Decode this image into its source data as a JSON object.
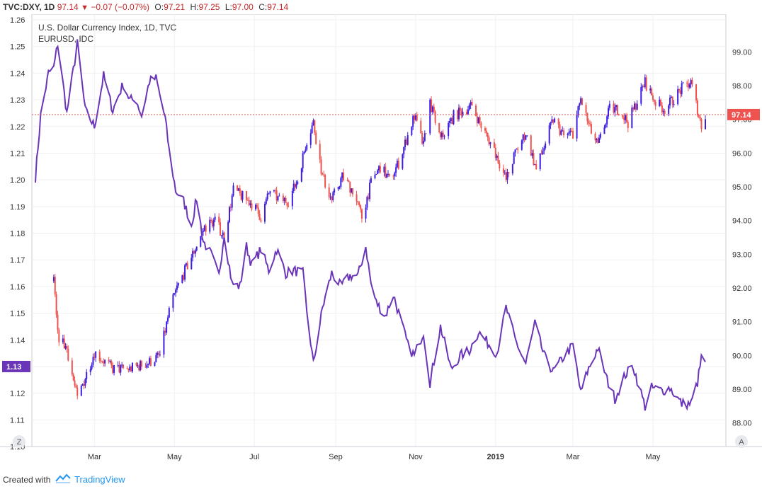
{
  "header": {
    "symbol": "TVC:DXY, 1D",
    "last": "97.14",
    "change": "−0.07 (−0.07%)",
    "open_label": "O:",
    "open": "97.21",
    "high_label": "H:",
    "high": "97.25",
    "low_label": "L:",
    "low": "97.00",
    "close_label": "C:",
    "close": "97.14"
  },
  "legend": {
    "series1": "U.S. Dollar Currency Index, 1D, TVC",
    "series2": "EURUSD, IDC"
  },
  "badges": {
    "right_price": "97.14",
    "left_price": "1.13",
    "z_button": "Z",
    "a_button": "A"
  },
  "footer": {
    "created_with": "Created with",
    "brand": "TradingView"
  },
  "colors": {
    "up": "#3b1ee0",
    "down": "#ef5350",
    "eurusd_line": "#6a35b8",
    "price_line": "#ef5350",
    "grid": "#eef0f3",
    "axis_text": "#333333"
  },
  "chart_data": {
    "type": "line",
    "x_ticks": [
      "Mar",
      "May",
      "Jul",
      "Sep",
      "Nov",
      "2019",
      "Mar",
      "May"
    ],
    "y_left": {
      "ticks": [
        "1.26",
        "1.25",
        "1.24",
        "1.23",
        "1.22",
        "1.21",
        "1.20",
        "1.19",
        "1.18",
        "1.17",
        "1.16",
        "1.15",
        "1.14",
        "1.13",
        "1.12",
        "1.11",
        "1.10"
      ],
      "range": [
        1.1,
        1.26
      ]
    },
    "y_right": {
      "ticks": [
        "99.00",
        "98.00",
        "97.00",
        "96.00",
        "95.00",
        "94.00",
        "93.00",
        "92.00",
        "91.00",
        "90.00",
        "89.00",
        "88.00"
      ],
      "range": [
        87.3,
        99.95
      ]
    },
    "series": [
      {
        "name": "U.S. Dollar Currency Index, 1D, TVC",
        "axis": "right",
        "kind": "candlestick",
        "anchors": [
          [
            "2018-01-29",
            92.2
          ],
          [
            "2018-02-01",
            90.6
          ],
          [
            "2018-02-08",
            90.2
          ],
          [
            "2018-02-16",
            88.7
          ],
          [
            "2018-03-01",
            90.1
          ],
          [
            "2018-03-15",
            89.6
          ],
          [
            "2018-03-28",
            89.6
          ],
          [
            "2018-04-12",
            89.8
          ],
          [
            "2018-04-20",
            90.0
          ],
          [
            "2018-04-27",
            91.3
          ],
          [
            "2018-05-03",
            92.0
          ],
          [
            "2018-05-15",
            93.0
          ],
          [
            "2018-05-24",
            93.8
          ],
          [
            "2018-06-01",
            94.0
          ],
          [
            "2018-06-08",
            93.5
          ],
          [
            "2018-06-15",
            94.9
          ],
          [
            "2018-06-29",
            94.5
          ],
          [
            "2018-07-06",
            94.1
          ],
          [
            "2018-07-13",
            94.9
          ],
          [
            "2018-07-20",
            94.6
          ],
          [
            "2018-07-27",
            94.6
          ],
          [
            "2018-08-03",
            95.2
          ],
          [
            "2018-08-10",
            96.4
          ],
          [
            "2018-08-15",
            96.9
          ],
          [
            "2018-08-22",
            95.3
          ],
          [
            "2018-08-29",
            94.6
          ],
          [
            "2018-09-06",
            95.3
          ],
          [
            "2018-09-14",
            94.9
          ],
          [
            "2018-09-21",
            94.1
          ],
          [
            "2018-09-28",
            95.1
          ],
          [
            "2018-10-05",
            95.6
          ],
          [
            "2018-10-12",
            95.2
          ],
          [
            "2018-10-19",
            95.7
          ],
          [
            "2018-10-31",
            97.1
          ],
          [
            "2018-11-07",
            96.2
          ],
          [
            "2018-11-12",
            97.5
          ],
          [
            "2018-11-20",
            96.4
          ],
          [
            "2018-11-30",
            97.1
          ],
          [
            "2018-12-14",
            97.4
          ],
          [
            "2018-12-21",
            96.8
          ],
          [
            "2018-12-31",
            96.1
          ],
          [
            "2019-01-09",
            95.2
          ],
          [
            "2019-01-16",
            96.0
          ],
          [
            "2019-01-24",
            96.6
          ],
          [
            "2019-02-01",
            95.5
          ],
          [
            "2019-02-14",
            97.0
          ],
          [
            "2019-02-22",
            96.5
          ],
          [
            "2019-03-01",
            96.6
          ],
          [
            "2019-03-07",
            97.6
          ],
          [
            "2019-03-14",
            96.7
          ],
          [
            "2019-03-20",
            96.2
          ],
          [
            "2019-03-29",
            97.3
          ],
          [
            "2019-04-05",
            97.3
          ],
          [
            "2019-04-12",
            96.9
          ],
          [
            "2019-04-25",
            98.1
          ],
          [
            "2019-05-03",
            97.5
          ],
          [
            "2019-05-10",
            97.3
          ],
          [
            "2019-05-23",
            97.9
          ],
          [
            "2019-05-30",
            98.1
          ],
          [
            "2019-06-07",
            96.8
          ],
          [
            "2019-06-10",
            97.14
          ]
        ]
      },
      {
        "name": "EURUSD, IDC",
        "axis": "left",
        "kind": "line",
        "anchors": [
          [
            "2018-01-15",
            1.201
          ],
          [
            "2018-01-19",
            1.224
          ],
          [
            "2018-01-25",
            1.24
          ],
          [
            "2018-01-29",
            1.242
          ],
          [
            "2018-02-01",
            1.251
          ],
          [
            "2018-02-08",
            1.225
          ],
          [
            "2018-02-16",
            1.251
          ],
          [
            "2018-02-22",
            1.226
          ],
          [
            "2018-03-01",
            1.22
          ],
          [
            "2018-03-08",
            1.239
          ],
          [
            "2018-03-15",
            1.226
          ],
          [
            "2018-03-23",
            1.236
          ],
          [
            "2018-03-28",
            1.23
          ],
          [
            "2018-04-02",
            1.23
          ],
          [
            "2018-04-06",
            1.224
          ],
          [
            "2018-04-12",
            1.237
          ],
          [
            "2018-04-17",
            1.238
          ],
          [
            "2018-04-24",
            1.223
          ],
          [
            "2018-04-27",
            1.211
          ],
          [
            "2018-05-02",
            1.196
          ],
          [
            "2018-05-08",
            1.192
          ],
          [
            "2018-05-14",
            1.183
          ],
          [
            "2018-05-18",
            1.193
          ],
          [
            "2018-05-23",
            1.177
          ],
          [
            "2018-05-29",
            1.172
          ],
          [
            "2018-06-04",
            1.164
          ],
          [
            "2018-06-08",
            1.18
          ],
          [
            "2018-06-14",
            1.161
          ],
          [
            "2018-06-20",
            1.16
          ],
          [
            "2018-06-25",
            1.175
          ],
          [
            "2018-06-29",
            1.168
          ],
          [
            "2018-07-06",
            1.174
          ],
          [
            "2018-07-12",
            1.166
          ],
          [
            "2018-07-18",
            1.174
          ],
          [
            "2018-07-25",
            1.165
          ],
          [
            "2018-07-31",
            1.166
          ],
          [
            "2018-08-07",
            1.165
          ],
          [
            "2018-08-10",
            1.151
          ],
          [
            "2018-08-15",
            1.131
          ],
          [
            "2018-08-22",
            1.152
          ],
          [
            "2018-08-29",
            1.165
          ],
          [
            "2018-09-05",
            1.16
          ],
          [
            "2018-09-12",
            1.164
          ],
          [
            "2018-09-18",
            1.164
          ],
          [
            "2018-09-24",
            1.175
          ],
          [
            "2018-09-28",
            1.161
          ],
          [
            "2018-10-02",
            1.154
          ],
          [
            "2018-10-09",
            1.149
          ],
          [
            "2018-10-15",
            1.157
          ],
          [
            "2018-10-22",
            1.145
          ],
          [
            "2018-10-26",
            1.138
          ],
          [
            "2018-10-31",
            1.134
          ],
          [
            "2018-11-07",
            1.143
          ],
          [
            "2018-11-12",
            1.124
          ],
          [
            "2018-11-20",
            1.145
          ],
          [
            "2018-11-28",
            1.129
          ],
          [
            "2018-12-05",
            1.134
          ],
          [
            "2018-12-12",
            1.136
          ],
          [
            "2018-12-19",
            1.143
          ],
          [
            "2018-12-24",
            1.14
          ],
          [
            "2019-01-02",
            1.135
          ],
          [
            "2019-01-09",
            1.152
          ],
          [
            "2019-01-16",
            1.14
          ],
          [
            "2019-01-24",
            1.131
          ],
          [
            "2019-01-31",
            1.146
          ],
          [
            "2019-02-07",
            1.134
          ],
          [
            "2019-02-14",
            1.128
          ],
          [
            "2019-02-21",
            1.133
          ],
          [
            "2019-03-01",
            1.138
          ],
          [
            "2019-03-07",
            1.12
          ],
          [
            "2019-03-12",
            1.128
          ],
          [
            "2019-03-20",
            1.137
          ],
          [
            "2019-03-27",
            1.125
          ],
          [
            "2019-04-02",
            1.118
          ],
          [
            "2019-04-10",
            1.127
          ],
          [
            "2019-04-16",
            1.13
          ],
          [
            "2019-04-25",
            1.115
          ],
          [
            "2019-04-30",
            1.122
          ],
          [
            "2019-05-08",
            1.121
          ],
          [
            "2019-05-14",
            1.122
          ],
          [
            "2019-05-23",
            1.116
          ],
          [
            "2019-05-30",
            1.116
          ],
          [
            "2019-06-04",
            1.124
          ],
          [
            "2019-06-07",
            1.133
          ],
          [
            "2019-06-10",
            1.132
          ]
        ]
      }
    ],
    "date_range": [
      "2018-01-15",
      "2019-06-10"
    ],
    "grid": true,
    "price_line": 97.14
  }
}
